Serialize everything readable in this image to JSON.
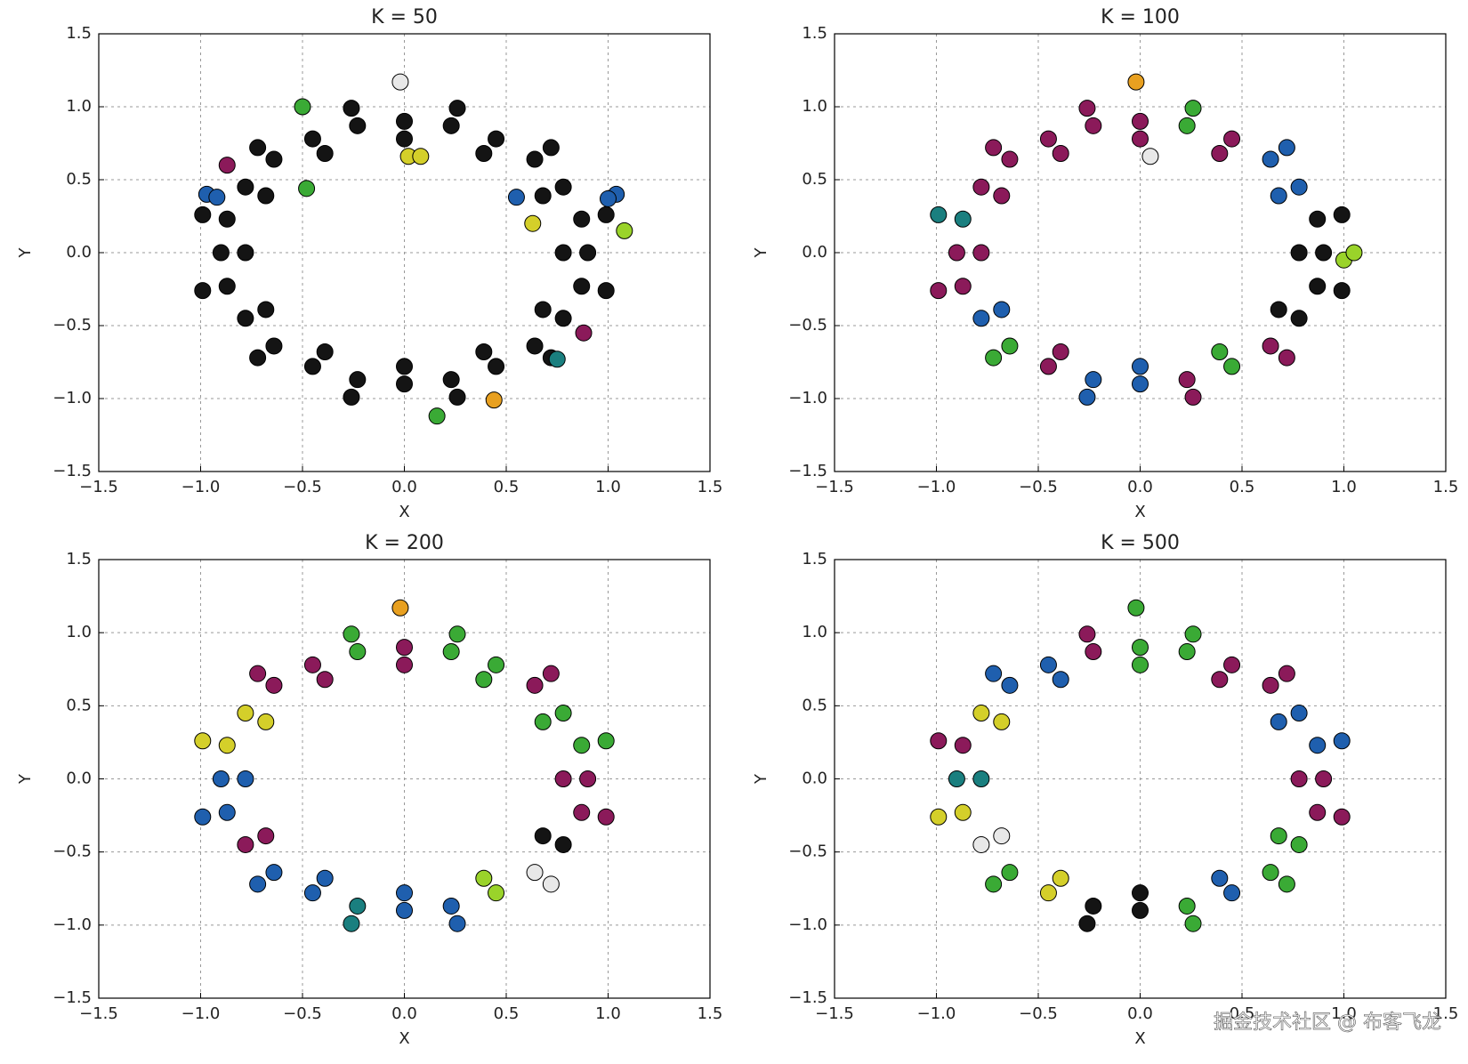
{
  "chart_data": [
    {
      "type": "scatter",
      "title": "K = 50",
      "xlabel": "X",
      "ylabel": "Y",
      "xlim": [
        -1.5,
        1.5
      ],
      "ylim": [
        -1.5,
        1.5
      ],
      "xticks": [
        {
          "value": -1.5,
          "label": "−1.5"
        },
        {
          "value": -1,
          "label": "−1.0"
        },
        {
          "value": -0.5,
          "label": "−0.5"
        },
        {
          "value": 0,
          "label": "0.0"
        },
        0.5,
        {
          "value": 1,
          "label": "1.0"
        },
        1.5
      ],
      "yticks": [
        {
          "value": -1.5,
          "label": "−1.5"
        },
        {
          "value": -1,
          "label": "−1.0"
        },
        {
          "value": -0.5,
          "label": "−0.5"
        },
        {
          "value": 0,
          "label": "0.0"
        },
        0.5,
        {
          "value": 1,
          "label": "1.0"
        },
        1.5
      ],
      "grid": true,
      "series": [
        {
          "color": "#141414",
          "x": [
            0.9,
            0.87,
            0.78,
            0.64,
            0.45,
            0.23,
            0,
            -0.23,
            -0.45,
            -0.64,
            -0.78,
            -0.87,
            -0.9,
            -0.87,
            -0.78,
            -0.64,
            -0.45,
            -0.23,
            0,
            0.23,
            0.45,
            0.64,
            0.78,
            0.87,
            0.78,
            0.68,
            0.39,
            0,
            -0.39,
            -0.68,
            -0.78,
            -0.68,
            -0.39,
            0,
            0.39,
            0.68,
            0.99,
            0.72,
            0.26,
            -0.26,
            -0.72,
            -0.99,
            -0.99,
            -0.72,
            -0.26,
            0.26,
            0.72,
            0.99
          ],
          "y": [
            0,
            0.23,
            0.45,
            0.64,
            0.78,
            0.87,
            0.9,
            0.87,
            0.78,
            0.64,
            0.45,
            0.23,
            0,
            -0.23,
            -0.45,
            -0.64,
            -0.78,
            -0.87,
            -0.9,
            -0.87,
            -0.78,
            -0.64,
            -0.45,
            -0.23,
            0,
            0.39,
            0.68,
            0.78,
            0.68,
            0.39,
            0,
            -0.39,
            -0.68,
            -0.78,
            -0.68,
            -0.39,
            0.26,
            0.72,
            0.99,
            0.99,
            0.72,
            0.26,
            -0.26,
            -0.72,
            -0.99,
            -0.99,
            -0.72,
            -0.26
          ]
        },
        {
          "color": "#e8e8e8",
          "x": [
            -0.02
          ],
          "y": [
            1.17
          ]
        },
        {
          "color": "#d4cf2a",
          "x": [
            0.02,
            0.08,
            0.63
          ],
          "y": [
            0.66,
            0.66,
            0.2
          ]
        },
        {
          "color": "#e8a020",
          "x": [
            0.44
          ],
          "y": [
            -1.01
          ]
        },
        {
          "color": "#3aaa35",
          "x": [
            -0.5,
            -0.48,
            0.16
          ],
          "y": [
            1.0,
            0.44,
            -1.12
          ]
        },
        {
          "color": "#1f5fae",
          "x": [
            1.04,
            1.0,
            -0.97,
            -0.92,
            0.55
          ],
          "y": [
            0.4,
            0.37,
            0.4,
            0.38,
            0.38
          ]
        },
        {
          "color": "#9ad32a",
          "x": [
            1.08
          ],
          "y": [
            0.15
          ]
        },
        {
          "color": "#8b1a5a",
          "x": [
            -0.87,
            0.88
          ],
          "y": [
            0.6,
            -0.55
          ]
        },
        {
          "color": "#1a7f7f",
          "x": [
            0.75
          ],
          "y": [
            -0.73
          ]
        }
      ]
    },
    {
      "type": "scatter",
      "title": "K = 100",
      "xlabel": "X",
      "ylabel": "Y",
      "xlim": [
        -1.5,
        1.5
      ],
      "ylim": [
        -1.5,
        1.5
      ],
      "xticks": [
        {
          "value": -1.5,
          "label": "−1.5"
        },
        {
          "value": -1,
          "label": "−1.0"
        },
        {
          "value": -0.5,
          "label": "−0.5"
        },
        {
          "value": 0,
          "label": "0.0"
        },
        0.5,
        {
          "value": 1,
          "label": "1.0"
        },
        1.5
      ],
      "yticks": [
        {
          "value": -1.5,
          "label": "−1.5"
        },
        {
          "value": -1,
          "label": "−1.0"
        },
        {
          "value": -0.5,
          "label": "−0.5"
        },
        {
          "value": 0,
          "label": "0.0"
        },
        0.5,
        {
          "value": 1,
          "label": "1.0"
        },
        1.5
      ],
      "grid": true,
      "series": [
        {
          "color": "#8b1a5a",
          "x": [
            0.45,
            0,
            -0.23,
            -0.45,
            -0.64,
            -0.78,
            -0.9,
            -0.87,
            -0.45,
            0.23,
            0.64,
            0.39,
            0,
            -0.39,
            -0.68,
            -0.78,
            -0.39,
            -0.26,
            -0.72,
            -0.99,
            0.26,
            0.72
          ],
          "y": [
            0.78,
            0.9,
            0.87,
            0.78,
            0.64,
            0.45,
            0,
            -0.23,
            -0.78,
            -0.87,
            -0.64,
            0.68,
            0.78,
            0.68,
            0.39,
            0,
            -0.68,
            0.99,
            0.72,
            -0.26,
            -0.99,
            -0.72
          ]
        },
        {
          "color": "#141414",
          "x": [
            0.9,
            0.87,
            0.78,
            0.87,
            0.78,
            0.68,
            0.99,
            0.99
          ],
          "y": [
            0,
            0.23,
            -0.45,
            -0.23,
            0,
            -0.39,
            0.26,
            -0.26
          ]
        },
        {
          "color": "#1f5fae",
          "x": [
            0.78,
            0.64,
            -0.78,
            -0.23,
            0,
            0.68,
            -0.68,
            0,
            0.72,
            -0.26
          ],
          "y": [
            0.45,
            0.64,
            -0.45,
            -0.87,
            -0.9,
            0.39,
            -0.39,
            -0.78,
            0.72,
            -0.99
          ]
        },
        {
          "color": "#3aaa35",
          "x": [
            0.23,
            -0.64,
            0.45,
            0.39,
            0.26,
            -0.72
          ],
          "y": [
            0.87,
            -0.64,
            -0.78,
            -0.68,
            0.99,
            -0.72
          ]
        },
        {
          "color": "#1a7f7f",
          "x": [
            -0.87,
            -0.99
          ],
          "y": [
            0.23,
            0.26
          ]
        },
        {
          "color": "#9ad32a",
          "x": [
            1.0,
            1.05
          ],
          "y": [
            -0.05,
            0.0
          ]
        },
        {
          "color": "#e8a020",
          "x": [
            -0.02
          ],
          "y": [
            1.17
          ]
        },
        {
          "color": "#e8e8e8",
          "x": [
            0.05
          ],
          "y": [
            0.66
          ]
        }
      ]
    },
    {
      "type": "scatter",
      "title": "K = 200",
      "xlabel": "X",
      "ylabel": "Y",
      "xlim": [
        -1.5,
        1.5
      ],
      "ylim": [
        -1.5,
        1.5
      ],
      "xticks": [
        {
          "value": -1.5,
          "label": "−1.5"
        },
        {
          "value": -1,
          "label": "−1.0"
        },
        {
          "value": -0.5,
          "label": "−0.5"
        },
        {
          "value": 0,
          "label": "0.0"
        },
        0.5,
        {
          "value": 1,
          "label": "1.0"
        },
        1.5
      ],
      "yticks": [
        {
          "value": -1.5,
          "label": "−1.5"
        },
        {
          "value": -1,
          "label": "−1.0"
        },
        {
          "value": -0.5,
          "label": "−0.5"
        },
        {
          "value": 0,
          "label": "0.0"
        },
        0.5,
        {
          "value": 1,
          "label": "1.0"
        },
        1.5
      ],
      "grid": true,
      "series": [
        {
          "color": "#8b1a5a",
          "x": [
            0.9,
            0.64,
            0,
            -0.45,
            -0.64,
            -0.78,
            0.87,
            0.78,
            0,
            -0.39,
            -0.68,
            0.72,
            -0.72,
            0.99
          ],
          "y": [
            0,
            0.64,
            0.9,
            0.78,
            0.64,
            -0.45,
            -0.23,
            0,
            0.78,
            0.68,
            -0.39,
            0.72,
            0.72,
            -0.26
          ]
        },
        {
          "color": "#3aaa35",
          "x": [
            0.87,
            0.78,
            0.45,
            0.23,
            -0.23,
            0.68,
            0.39,
            0.99,
            0.26,
            -0.26
          ],
          "y": [
            0.23,
            0.45,
            0.78,
            0.87,
            0.87,
            0.39,
            0.68,
            0.26,
            0.99,
            0.99
          ]
        },
        {
          "color": "#d4cf2a",
          "x": [
            -0.78,
            -0.87,
            -0.68,
            -0.99
          ],
          "y": [
            0.45,
            0.23,
            0.39,
            0.26
          ]
        },
        {
          "color": "#1f5fae",
          "x": [
            -0.9,
            -0.87,
            -0.64,
            -0.45,
            0,
            0.23,
            -0.78,
            -0.39,
            0,
            -0.99,
            -0.72,
            0.26
          ],
          "y": [
            0,
            -0.23,
            -0.64,
            -0.78,
            -0.9,
            -0.87,
            0,
            -0.68,
            -0.78,
            -0.26,
            -0.72,
            -0.99
          ]
        },
        {
          "color": "#1a7f7f",
          "x": [
            -0.23,
            -0.26
          ],
          "y": [
            -0.87,
            -0.99
          ]
        },
        {
          "color": "#9ad32a",
          "x": [
            0.45,
            0.39
          ],
          "y": [
            -0.78,
            -0.68
          ]
        },
        {
          "color": "#e8e8e8",
          "x": [
            0.64,
            0.72
          ],
          "y": [
            -0.64,
            -0.72
          ]
        },
        {
          "color": "#141414",
          "x": [
            0.78,
            0.68
          ],
          "y": [
            -0.45,
            -0.39
          ]
        },
        {
          "color": "#e8a020",
          "x": [
            -0.02
          ],
          "y": [
            1.17
          ]
        }
      ]
    },
    {
      "type": "scatter",
      "title": "K = 500",
      "xlabel": "X",
      "ylabel": "Y",
      "xlim": [
        -1.5,
        1.5
      ],
      "ylim": [
        -1.5,
        1.5
      ],
      "xticks": [
        {
          "value": -1.5,
          "label": "−1.5"
        },
        {
          "value": -1,
          "label": "−1.0"
        },
        {
          "value": -0.5,
          "label": "−0.5"
        },
        {
          "value": 0,
          "label": "0.0"
        },
        0.5,
        {
          "value": 1,
          "label": "1.0"
        },
        1.5
      ],
      "yticks": [
        {
          "value": -1.5,
          "label": "−1.5"
        },
        {
          "value": -1,
          "label": "−1.0"
        },
        {
          "value": -0.5,
          "label": "−0.5"
        },
        {
          "value": 0,
          "label": "0.0"
        },
        0.5,
        {
          "value": 1,
          "label": "1.0"
        },
        1.5
      ],
      "grid": true,
      "series": [
        {
          "color": "#8b1a5a",
          "x": [
            0.9,
            0.64,
            0.45,
            -0.23,
            -0.87,
            0.87,
            0.78,
            0.39,
            0.72,
            -0.26,
            -0.99,
            0.99
          ],
          "y": [
            0,
            0.64,
            0.78,
            0.87,
            0.23,
            -0.23,
            0,
            0.68,
            0.72,
            0.99,
            0.26,
            -0.26
          ]
        },
        {
          "color": "#1f5fae",
          "x": [
            0.87,
            0.78,
            -0.45,
            -0.64,
            0.45,
            0.68,
            -0.39,
            0.39,
            0.99,
            -0.72
          ],
          "y": [
            0.23,
            0.45,
            0.78,
            0.64,
            -0.78,
            0.39,
            0.68,
            -0.68,
            0.26,
            0.72
          ]
        },
        {
          "color": "#3aaa35",
          "x": [
            0.23,
            0,
            -0.64,
            0.23,
            0.64,
            0.78,
            0,
            0.68,
            0.26,
            -0.72,
            0.26,
            0.72
          ],
          "y": [
            0.87,
            0.9,
            -0.64,
            -0.87,
            -0.64,
            -0.45,
            0.78,
            -0.39,
            0.99,
            -0.72,
            -0.99,
            -0.72
          ]
        },
        {
          "color": "#d4cf2a",
          "x": [
            -0.78,
            -0.87,
            -0.45,
            -0.68,
            -0.39,
            -0.99
          ],
          "y": [
            0.45,
            -0.23,
            -0.78,
            0.39,
            -0.68,
            -0.26
          ]
        },
        {
          "color": "#1a7f7f",
          "x": [
            -0.9,
            -0.78
          ],
          "y": [
            0,
            0
          ]
        },
        {
          "color": "#e8e8e8",
          "x": [
            -0.78,
            -0.68
          ],
          "y": [
            -0.45,
            -0.39
          ]
        },
        {
          "color": "#141414",
          "x": [
            -0.23,
            0,
            0,
            -0.26
          ],
          "y": [
            -0.87,
            -0.9,
            -0.78,
            -0.99
          ]
        },
        {
          "color": "#3aaa35",
          "x": [
            -0.02
          ],
          "y": [
            1.17
          ]
        }
      ]
    }
  ],
  "watermark": "掘金技术社区 @ 布客飞龙"
}
